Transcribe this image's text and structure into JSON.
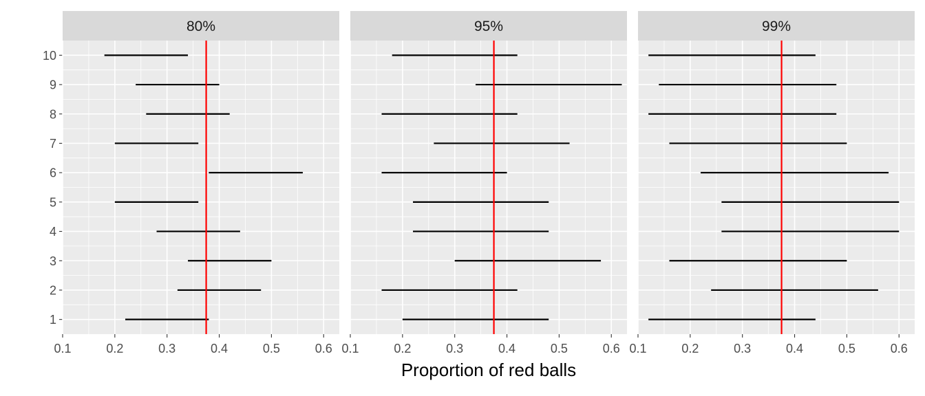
{
  "chart_data": {
    "type": "errorbar-facets",
    "xlabel": "Proportion of red balls",
    "ylabel": "",
    "xlim": [
      0.1,
      0.63
    ],
    "ylim": [
      0.5,
      10.5
    ],
    "x_ticks": [
      0.1,
      0.2,
      0.3,
      0.4,
      0.5,
      0.6
    ],
    "x_tick_labels": [
      "0.1",
      "0.2",
      "0.3",
      "0.4",
      "0.5",
      "0.6"
    ],
    "y_ticks": [
      1,
      2,
      3,
      4,
      5,
      6,
      7,
      8,
      9,
      10
    ],
    "y_tick_labels": [
      "1",
      "2",
      "3",
      "4",
      "5",
      "6",
      "7",
      "8",
      "9",
      "10"
    ],
    "reference_line": {
      "x": 0.375,
      "color": "#ff0000"
    },
    "grid": true,
    "panel_background": "#ebebeb",
    "strip_background": "#d9d9d9",
    "interval_color": "#000000",
    "facets": [
      {
        "label": "80%",
        "intervals": [
          {
            "y": 10,
            "low": 0.18,
            "high": 0.34
          },
          {
            "y": 9,
            "low": 0.24,
            "high": 0.4
          },
          {
            "y": 8,
            "low": 0.26,
            "high": 0.42
          },
          {
            "y": 7,
            "low": 0.2,
            "high": 0.36
          },
          {
            "y": 6,
            "low": 0.38,
            "high": 0.56
          },
          {
            "y": 5,
            "low": 0.2,
            "high": 0.36
          },
          {
            "y": 4,
            "low": 0.28,
            "high": 0.44
          },
          {
            "y": 3,
            "low": 0.34,
            "high": 0.5
          },
          {
            "y": 2,
            "low": 0.32,
            "high": 0.48
          },
          {
            "y": 1,
            "low": 0.22,
            "high": 0.38
          }
        ]
      },
      {
        "label": "95%",
        "intervals": [
          {
            "y": 10,
            "low": 0.18,
            "high": 0.42
          },
          {
            "y": 9,
            "low": 0.34,
            "high": 0.62
          },
          {
            "y": 8,
            "low": 0.16,
            "high": 0.42
          },
          {
            "y": 7,
            "low": 0.26,
            "high": 0.52
          },
          {
            "y": 6,
            "low": 0.16,
            "high": 0.4
          },
          {
            "y": 5,
            "low": 0.22,
            "high": 0.48
          },
          {
            "y": 4,
            "low": 0.22,
            "high": 0.48
          },
          {
            "y": 3,
            "low": 0.3,
            "high": 0.58
          },
          {
            "y": 2,
            "low": 0.16,
            "high": 0.42
          },
          {
            "y": 1,
            "low": 0.2,
            "high": 0.48
          }
        ]
      },
      {
        "label": "99%",
        "intervals": [
          {
            "y": 10,
            "low": 0.12,
            "high": 0.44
          },
          {
            "y": 9,
            "low": 0.14,
            "high": 0.48
          },
          {
            "y": 8,
            "low": 0.12,
            "high": 0.48
          },
          {
            "y": 7,
            "low": 0.16,
            "high": 0.5
          },
          {
            "y": 6,
            "low": 0.22,
            "high": 0.58
          },
          {
            "y": 5,
            "low": 0.26,
            "high": 0.6
          },
          {
            "y": 4,
            "low": 0.26,
            "high": 0.6
          },
          {
            "y": 3,
            "low": 0.16,
            "high": 0.5
          },
          {
            "y": 2,
            "low": 0.24,
            "high": 0.56
          },
          {
            "y": 1,
            "low": 0.12,
            "high": 0.44
          }
        ]
      }
    ]
  }
}
